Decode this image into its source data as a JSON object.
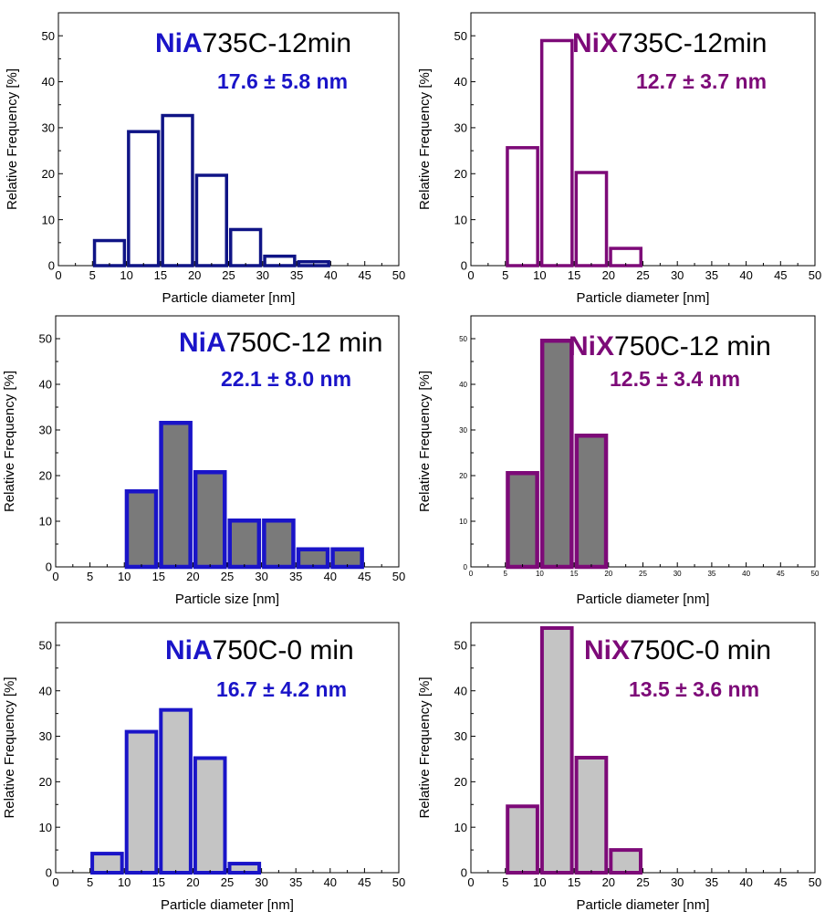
{
  "colors": {
    "blue": "#1a14c8",
    "navy": "#0f1486",
    "purple": "#7d0a78",
    "darkgray": "#7a7a7a",
    "lightgray": "#c4c4c4"
  },
  "chart_data": [
    {
      "type": "bar",
      "title_prefix": "NiA",
      "title_suffix": "735C-12min",
      "stats": "17.6 ± 5.8 nm",
      "xlabel": "Particle diameter [nm]",
      "ylabel": "Relative Frequency [%]",
      "xlim": [
        0,
        50
      ],
      "ylim": [
        0,
        55
      ],
      "xticks": [
        "0",
        "5",
        "10",
        "15",
        "20",
        "25",
        "30",
        "35",
        "40",
        "45",
        "50"
      ],
      "yticks": [
        "0",
        "10",
        "20",
        "30",
        "40",
        "50"
      ],
      "bin_width": 5,
      "bins": [
        5,
        10,
        15,
        20,
        25,
        30,
        35
      ],
      "values": [
        5.8,
        29.5,
        33,
        20,
        8.2,
        2.4,
        1.2
      ],
      "bar_color": "#ffffff",
      "edge_color": "#0f1486",
      "title_color": "#1a14c8"
    },
    {
      "type": "bar",
      "title_prefix": "NiX",
      "title_suffix": "735C-12min",
      "stats": "12.7 ± 3.7 nm",
      "xlabel": "Particle diameter [nm]",
      "ylabel": "Relative Frequency [%]",
      "xlim": [
        0,
        50
      ],
      "ylim": [
        0,
        55
      ],
      "xticks": [
        "0",
        "5",
        "10",
        "15",
        "20",
        "25",
        "30",
        "35",
        "40",
        "45",
        "50"
      ],
      "yticks": [
        "0",
        "10",
        "20",
        "30",
        "40",
        "50"
      ],
      "bin_width": 5,
      "bins": [
        5,
        10,
        15,
        20
      ],
      "values": [
        26,
        49.3,
        20.6,
        4.1
      ],
      "bar_color": "#ffffff",
      "edge_color": "#7d0a78",
      "title_color": "#7d0a78"
    },
    {
      "type": "bar",
      "title_prefix": "NiA",
      "title_suffix": "750C-12 min",
      "stats": "22.1 ± 8.0 nm",
      "xlabel": "Particle size [nm]",
      "ylabel": "Relative Frequency [%]",
      "xlim": [
        0,
        50
      ],
      "ylim": [
        0,
        55
      ],
      "xticks": [
        "0",
        "5",
        "10",
        "15",
        "20",
        "25",
        "30",
        "35",
        "40",
        "45",
        "50"
      ],
      "yticks": [
        "0",
        "10",
        "20",
        "30",
        "40",
        "50"
      ],
      "bin_width": 5,
      "bins": [
        10,
        15,
        20,
        25,
        30,
        35,
        40
      ],
      "values": [
        17,
        32,
        21.2,
        10.6,
        10.6,
        4.3,
        4.3
      ],
      "bar_color": "#7a7a7a",
      "edge_color": "#1a14c8",
      "title_color": "#1a14c8"
    },
    {
      "type": "bar",
      "title_prefix": "NiX",
      "title_suffix": "750C-12 min",
      "stats": "12.5 ± 3.4 nm",
      "xlabel": "Particle diameter [nm]",
      "ylabel": "Relative Frequency [%]",
      "xlim": [
        0,
        50
      ],
      "ylim": [
        0,
        55
      ],
      "xticks": [
        "0",
        "5",
        "10",
        "15",
        "20",
        "25",
        "30",
        "35",
        "40",
        "45",
        "50"
      ],
      "yticks": [
        "0",
        "10",
        "20",
        "30",
        "40",
        "50"
      ],
      "bin_width": 5,
      "bins": [
        5,
        10,
        15
      ],
      "values": [
        21,
        50,
        29.2
      ],
      "bar_color": "#7a7a7a",
      "edge_color": "#7d0a78",
      "title_color": "#7d0a78"
    },
    {
      "type": "bar",
      "title_prefix": "NiA",
      "title_suffix": "750C-0 min",
      "stats": "16.7 ± 4.2 nm",
      "xlabel": "Particle diameter [nm]",
      "ylabel": "Relative Frequency [%]",
      "xlim": [
        0,
        50
      ],
      "ylim": [
        0,
        55
      ],
      "xticks": [
        "0",
        "5",
        "10",
        "15",
        "20",
        "25",
        "30",
        "35",
        "40",
        "45",
        "50"
      ],
      "yticks": [
        "0",
        "10",
        "20",
        "30",
        "40",
        "50"
      ],
      "bin_width": 5,
      "bins": [
        5,
        10,
        15,
        20,
        25
      ],
      "values": [
        4.6,
        31.4,
        36.2,
        25.6,
        2.4
      ],
      "bar_color": "#c4c4c4",
      "edge_color": "#1a14c8",
      "title_color": "#1a14c8"
    },
    {
      "type": "bar",
      "title_prefix": "NiX",
      "title_suffix": "750C-0 min",
      "stats": "13.5 ± 3.6 nm",
      "xlabel": "Particle diameter [nm]",
      "ylabel": "Relative Frequency [%]",
      "xlim": [
        0,
        50
      ],
      "ylim": [
        0,
        55
      ],
      "xticks": [
        "0",
        "5",
        "10",
        "15",
        "20",
        "25",
        "30",
        "35",
        "40",
        "45",
        "50"
      ],
      "yticks": [
        "0",
        "10",
        "20",
        "30",
        "40",
        "50"
      ],
      "bin_width": 5,
      "bins": [
        5,
        10,
        15,
        20
      ],
      "values": [
        15,
        54.2,
        25.7,
        5.4
      ],
      "bar_color": "#c4c4c4",
      "edge_color": "#7d0a78",
      "title_color": "#7d0a78"
    }
  ]
}
